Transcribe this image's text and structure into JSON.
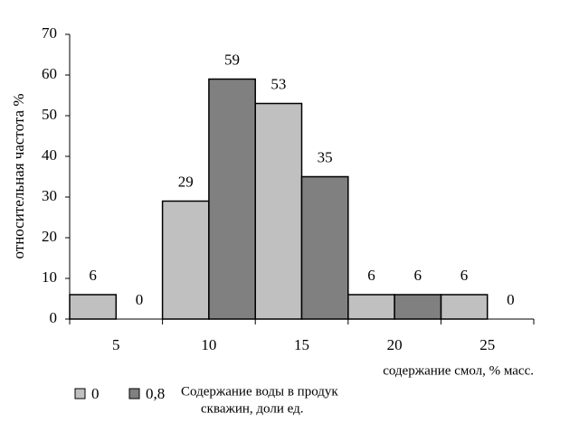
{
  "chart_data": {
    "type": "bar",
    "y_label": "относительная частота  %",
    "x_label": "содержание смол, % масс.",
    "legend_title": [
      "Содержание воды в продук",
      "скважин, доли ед."
    ],
    "categories": [
      "5",
      "10",
      "15",
      "20",
      "25"
    ],
    "series": [
      {
        "name": "0",
        "color": "#c0c0c0",
        "values": [
          6,
          29,
          53,
          6,
          6
        ]
      },
      {
        "name": "0,8",
        "color": "#808080",
        "values": [
          0,
          59,
          35,
          6,
          0
        ]
      }
    ],
    "ylim": [
      0,
      70
    ],
    "yticks": [
      0,
      10,
      20,
      30,
      40,
      50,
      60,
      70
    ]
  }
}
